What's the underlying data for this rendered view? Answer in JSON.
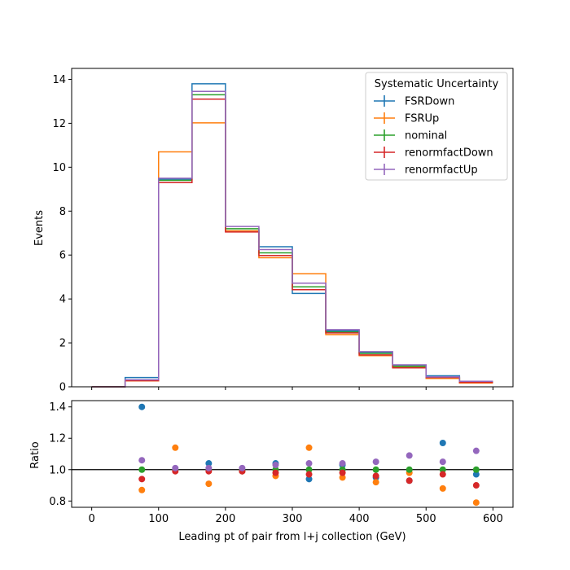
{
  "chart_data": [
    {
      "type": "step",
      "title": "",
      "xlabel": "",
      "ylabel": "Events",
      "xlim": [
        -30,
        630
      ],
      "ylim": [
        0,
        14.5
      ],
      "xticks": [
        0,
        100,
        200,
        300,
        400,
        500,
        600
      ],
      "yticks": [
        0,
        2,
        4,
        6,
        8,
        10,
        12,
        14
      ],
      "bin_edges": [
        0,
        50,
        100,
        150,
        200,
        250,
        300,
        350,
        400,
        450,
        500,
        550,
        600
      ],
      "legend": {
        "title": "Systematic Uncertainty",
        "position": "top-right",
        "marker": "errorbar"
      },
      "series": [
        {
          "name": "FSRDown",
          "color": "#1f77b4",
          "values": [
            0.0,
            0.42,
            9.45,
            13.8,
            7.1,
            6.38,
            4.25,
            2.55,
            1.55,
            0.95,
            0.5,
            0.22
          ]
        },
        {
          "name": "FSRUp",
          "color": "#ff7f0e",
          "values": [
            0.0,
            0.27,
            10.7,
            12.02,
            7.1,
            5.88,
            5.15,
            2.38,
            1.42,
            0.9,
            0.38,
            0.17
          ]
        },
        {
          "name": "nominal",
          "color": "#2ca02c",
          "values": [
            0.0,
            0.3,
            9.4,
            13.3,
            7.2,
            6.1,
            4.55,
            2.5,
            1.52,
            0.93,
            0.43,
            0.22
          ]
        },
        {
          "name": "renormfactDown",
          "color": "#d62728",
          "values": [
            0.0,
            0.28,
            9.3,
            13.1,
            7.05,
            5.98,
            4.42,
            2.45,
            1.45,
            0.86,
            0.42,
            0.2
          ]
        },
        {
          "name": "renormfactUp",
          "color": "#9467bd",
          "values": [
            0.0,
            0.32,
            9.5,
            13.45,
            7.3,
            6.25,
            4.72,
            2.6,
            1.6,
            1.0,
            0.45,
            0.25
          ]
        }
      ]
    },
    {
      "type": "scatter",
      "title": "",
      "xlabel": "Leading pt of pair from l+j collection (GeV)",
      "ylabel": "Ratio",
      "xlim": [
        -30,
        630
      ],
      "ylim": [
        0.76,
        1.44
      ],
      "xticks": [
        0,
        100,
        200,
        300,
        400,
        500,
        600
      ],
      "yticks": [
        0.8,
        1.0,
        1.2,
        1.4
      ],
      "reference_line": 1.0,
      "x": [
        75,
        125,
        175,
        225,
        275,
        325,
        375,
        425,
        475,
        525,
        575
      ],
      "series": [
        {
          "name": "FSRDown",
          "color": "#1f77b4",
          "values": [
            1.4,
            1.0,
            1.04,
            0.99,
            1.04,
            0.94,
            1.03,
            0.95,
            0.93,
            1.17,
            0.97
          ]
        },
        {
          "name": "FSRUp",
          "color": "#ff7f0e",
          "values": [
            0.87,
            1.14,
            0.91,
            0.99,
            0.96,
            1.14,
            0.95,
            0.92,
            0.98,
            0.88,
            0.79
          ]
        },
        {
          "name": "nominal",
          "color": "#2ca02c",
          "values": [
            1.0,
            1.0,
            1.0,
            1.0,
            1.0,
            1.0,
            1.0,
            1.0,
            1.0,
            1.0,
            1.0
          ]
        },
        {
          "name": "renormfactDown",
          "color": "#d62728",
          "values": [
            0.94,
            0.99,
            0.99,
            0.99,
            0.98,
            0.97,
            0.98,
            0.96,
            0.93,
            0.97,
            0.9
          ]
        },
        {
          "name": "renormfactUp",
          "color": "#9467bd",
          "values": [
            1.06,
            1.01,
            1.01,
            1.01,
            1.03,
            1.04,
            1.04,
            1.05,
            1.09,
            1.05,
            1.12
          ]
        }
      ]
    }
  ]
}
